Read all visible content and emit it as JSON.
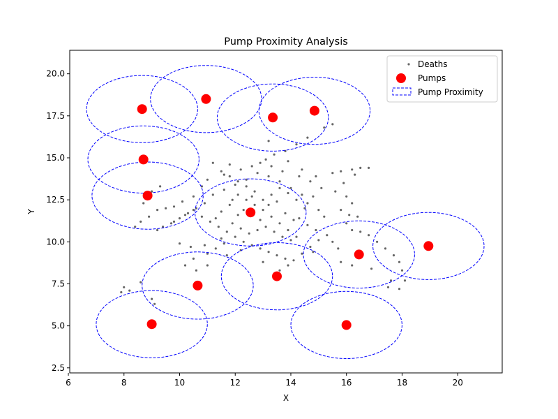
{
  "chart_data": {
    "type": "scatter",
    "title": "Pump Proximity Analysis",
    "xlabel": "X",
    "ylabel": "Y",
    "xlim": [
      6.05,
      21.6
    ],
    "ylim": [
      2.2,
      21.4
    ],
    "xticks": [
      "6",
      "8",
      "10",
      "12",
      "14",
      "16",
      "18",
      "20"
    ],
    "yticks": [
      "2.5",
      "5.0",
      "7.5",
      "10.0",
      "12.5",
      "15.0",
      "17.5",
      "20.0"
    ],
    "grid": false,
    "legend_position": "top-right",
    "legend": [
      "Deaths",
      "Pumps",
      "Pump Proximity"
    ],
    "proximity_radius": 2.0,
    "colors": {
      "deaths": "#000000",
      "pumps": "#ff0000",
      "proximity": "#0000ff"
    },
    "pumps": [
      {
        "x": 8.65,
        "y": 17.9
      },
      {
        "x": 10.95,
        "y": 18.5
      },
      {
        "x": 13.35,
        "y": 17.4
      },
      {
        "x": 14.85,
        "y": 17.8
      },
      {
        "x": 8.7,
        "y": 14.9
      },
      {
        "x": 8.85,
        "y": 12.75
      },
      {
        "x": 12.55,
        "y": 11.75
      },
      {
        "x": 16.45,
        "y": 9.25
      },
      {
        "x": 18.95,
        "y": 9.75
      },
      {
        "x": 10.65,
        "y": 7.4
      },
      {
        "x": 13.5,
        "y": 7.95
      },
      {
        "x": 9.0,
        "y": 5.1
      },
      {
        "x": 16.0,
        "y": 5.05
      }
    ],
    "deaths": [
      [
        11.2,
        14.7
      ],
      [
        11.8,
        14.6
      ],
      [
        12.2,
        14.3
      ],
      [
        12.6,
        14.5
      ],
      [
        13.1,
        14.9
      ],
      [
        13.4,
        15.2
      ],
      [
        13.8,
        15.4
      ],
      [
        14.2,
        15.8
      ],
      [
        14.6,
        16.2
      ],
      [
        15.2,
        16.8
      ],
      [
        15.5,
        17.0
      ],
      [
        13.2,
        16.0
      ],
      [
        13.9,
        14.8
      ],
      [
        14.4,
        14.3
      ],
      [
        14.9,
        13.9
      ],
      [
        15.5,
        14.1
      ],
      [
        15.8,
        14.2
      ],
      [
        16.2,
        14.3
      ],
      [
        16.5,
        14.4
      ],
      [
        16.8,
        14.4
      ],
      [
        16.3,
        14.0
      ],
      [
        15.9,
        13.5
      ],
      [
        15.6,
        13.0
      ],
      [
        16.0,
        12.7
      ],
      [
        16.2,
        12.3
      ],
      [
        15.8,
        11.9
      ],
      [
        16.1,
        11.6
      ],
      [
        16.4,
        11.5
      ],
      [
        16.0,
        11.1
      ],
      [
        15.2,
        11.5
      ],
      [
        15.0,
        11.9
      ],
      [
        14.6,
        12.3
      ],
      [
        14.4,
        12.8
      ],
      [
        14.0,
        13.2
      ],
      [
        13.6,
        13.6
      ],
      [
        13.2,
        13.9
      ],
      [
        12.8,
        14.1
      ],
      [
        12.4,
        13.7
      ],
      [
        12.0,
        13.4
      ],
      [
        11.6,
        13.1
      ],
      [
        11.2,
        12.8
      ],
      [
        10.9,
        12.3
      ],
      [
        10.6,
        12.0
      ],
      [
        10.3,
        11.7
      ],
      [
        10.0,
        11.4
      ],
      [
        9.7,
        11.1
      ],
      [
        9.4,
        10.9
      ],
      [
        9.2,
        10.7
      ],
      [
        9.8,
        11.2
      ],
      [
        10.2,
        11.6
      ],
      [
        10.5,
        11.9
      ],
      [
        10.8,
        11.5
      ],
      [
        11.1,
        11.2
      ],
      [
        11.4,
        10.9
      ],
      [
        11.7,
        10.6
      ],
      [
        12.0,
        10.3
      ],
      [
        12.3,
        10.0
      ],
      [
        12.6,
        9.8
      ],
      [
        12.9,
        9.6
      ],
      [
        13.2,
        9.4
      ],
      [
        13.5,
        9.2
      ],
      [
        13.8,
        9.0
      ],
      [
        14.1,
        8.9
      ],
      [
        14.4,
        9.3
      ],
      [
        14.7,
        9.7
      ],
      [
        15.0,
        10.1
      ],
      [
        15.3,
        10.4
      ],
      [
        15.5,
        10.0
      ],
      [
        15.7,
        9.6
      ],
      [
        16.2,
        10.7
      ],
      [
        16.5,
        10.6
      ],
      [
        16.8,
        10.4
      ],
      [
        17.1,
        10.0
      ],
      [
        17.4,
        9.6
      ],
      [
        17.7,
        9.2
      ],
      [
        17.9,
        8.8
      ],
      [
        18.0,
        8.3
      ],
      [
        17.6,
        7.7
      ],
      [
        17.5,
        7.3
      ],
      [
        17.9,
        7.2
      ],
      [
        18.1,
        7.7
      ],
      [
        16.9,
        8.4
      ],
      [
        16.2,
        8.6
      ],
      [
        15.8,
        8.8
      ],
      [
        14.8,
        9.4
      ],
      [
        14.2,
        10.3
      ],
      [
        13.9,
        10.7
      ],
      [
        13.6,
        11.1
      ],
      [
        13.3,
        11.5
      ],
      [
        13.0,
        11.9
      ],
      [
        12.7,
        12.2
      ],
      [
        12.4,
        12.5
      ],
      [
        12.1,
        12.8
      ],
      [
        11.8,
        12.2
      ],
      [
        11.5,
        11.8
      ],
      [
        11.3,
        11.4
      ],
      [
        11.9,
        11.1
      ],
      [
        12.2,
        10.8
      ],
      [
        12.5,
        10.5
      ],
      [
        12.8,
        10.7
      ],
      [
        13.1,
        10.9
      ],
      [
        13.4,
        10.6
      ],
      [
        13.7,
        10.3
      ],
      [
        14.0,
        10.1
      ],
      [
        14.3,
        11.4
      ],
      [
        14.6,
        11.0
      ],
      [
        14.9,
        10.7
      ],
      [
        14.5,
        12.0
      ],
      [
        14.2,
        12.5
      ],
      [
        13.9,
        12.9
      ],
      [
        13.6,
        13.2
      ],
      [
        13.3,
        12.8
      ],
      [
        13.0,
        12.5
      ],
      [
        12.7,
        13.0
      ],
      [
        12.4,
        13.3
      ],
      [
        12.1,
        13.6
      ],
      [
        11.8,
        13.9
      ],
      [
        11.5,
        14.2
      ],
      [
        10.8,
        13.3
      ],
      [
        10.5,
        12.7
      ],
      [
        10.1,
        12.4
      ],
      [
        9.8,
        12.1
      ],
      [
        9.5,
        12.0
      ],
      [
        9.2,
        11.9
      ],
      [
        8.9,
        11.5
      ],
      [
        8.6,
        11.2
      ],
      [
        8.4,
        10.9
      ],
      [
        8.7,
        12.3
      ],
      [
        9.0,
        13.0
      ],
      [
        9.3,
        13.3
      ],
      [
        10.0,
        9.9
      ],
      [
        10.4,
        9.7
      ],
      [
        10.9,
        9.8
      ],
      [
        11.3,
        9.6
      ],
      [
        11.6,
        9.9
      ],
      [
        11.0,
        9.3
      ],
      [
        10.5,
        9.0
      ],
      [
        10.2,
        8.6
      ],
      [
        11.0,
        8.6
      ],
      [
        11.7,
        9.2
      ],
      [
        12.2,
        9.5
      ],
      [
        13.0,
        8.8
      ],
      [
        13.6,
        8.3
      ],
      [
        13.9,
        8.6
      ],
      [
        10.6,
        8.3
      ],
      [
        8.0,
        7.3
      ],
      [
        8.2,
        7.1
      ],
      [
        7.9,
        7.0
      ],
      [
        8.6,
        7.6
      ],
      [
        9.1,
        6.3
      ],
      [
        9.0,
        6.6
      ],
      [
        11.5,
        10.2
      ],
      [
        12.1,
        11.6
      ],
      [
        12.9,
        11.3
      ],
      [
        13.2,
        12.2
      ],
      [
        13.8,
        11.7
      ],
      [
        14.1,
        11.3
      ],
      [
        12.3,
        11.9
      ],
      [
        11.9,
        12.5
      ],
      [
        12.6,
        12.7
      ],
      [
        13.5,
        12.4
      ],
      [
        14.8,
        12.7
      ],
      [
        15.1,
        13.2
      ],
      [
        14.7,
        13.6
      ],
      [
        14.3,
        13.9
      ],
      [
        13.7,
        14.2
      ],
      [
        13.3,
        14.5
      ],
      [
        12.9,
        14.7
      ],
      [
        11.6,
        14.0
      ],
      [
        11.0,
        13.7
      ]
    ]
  }
}
